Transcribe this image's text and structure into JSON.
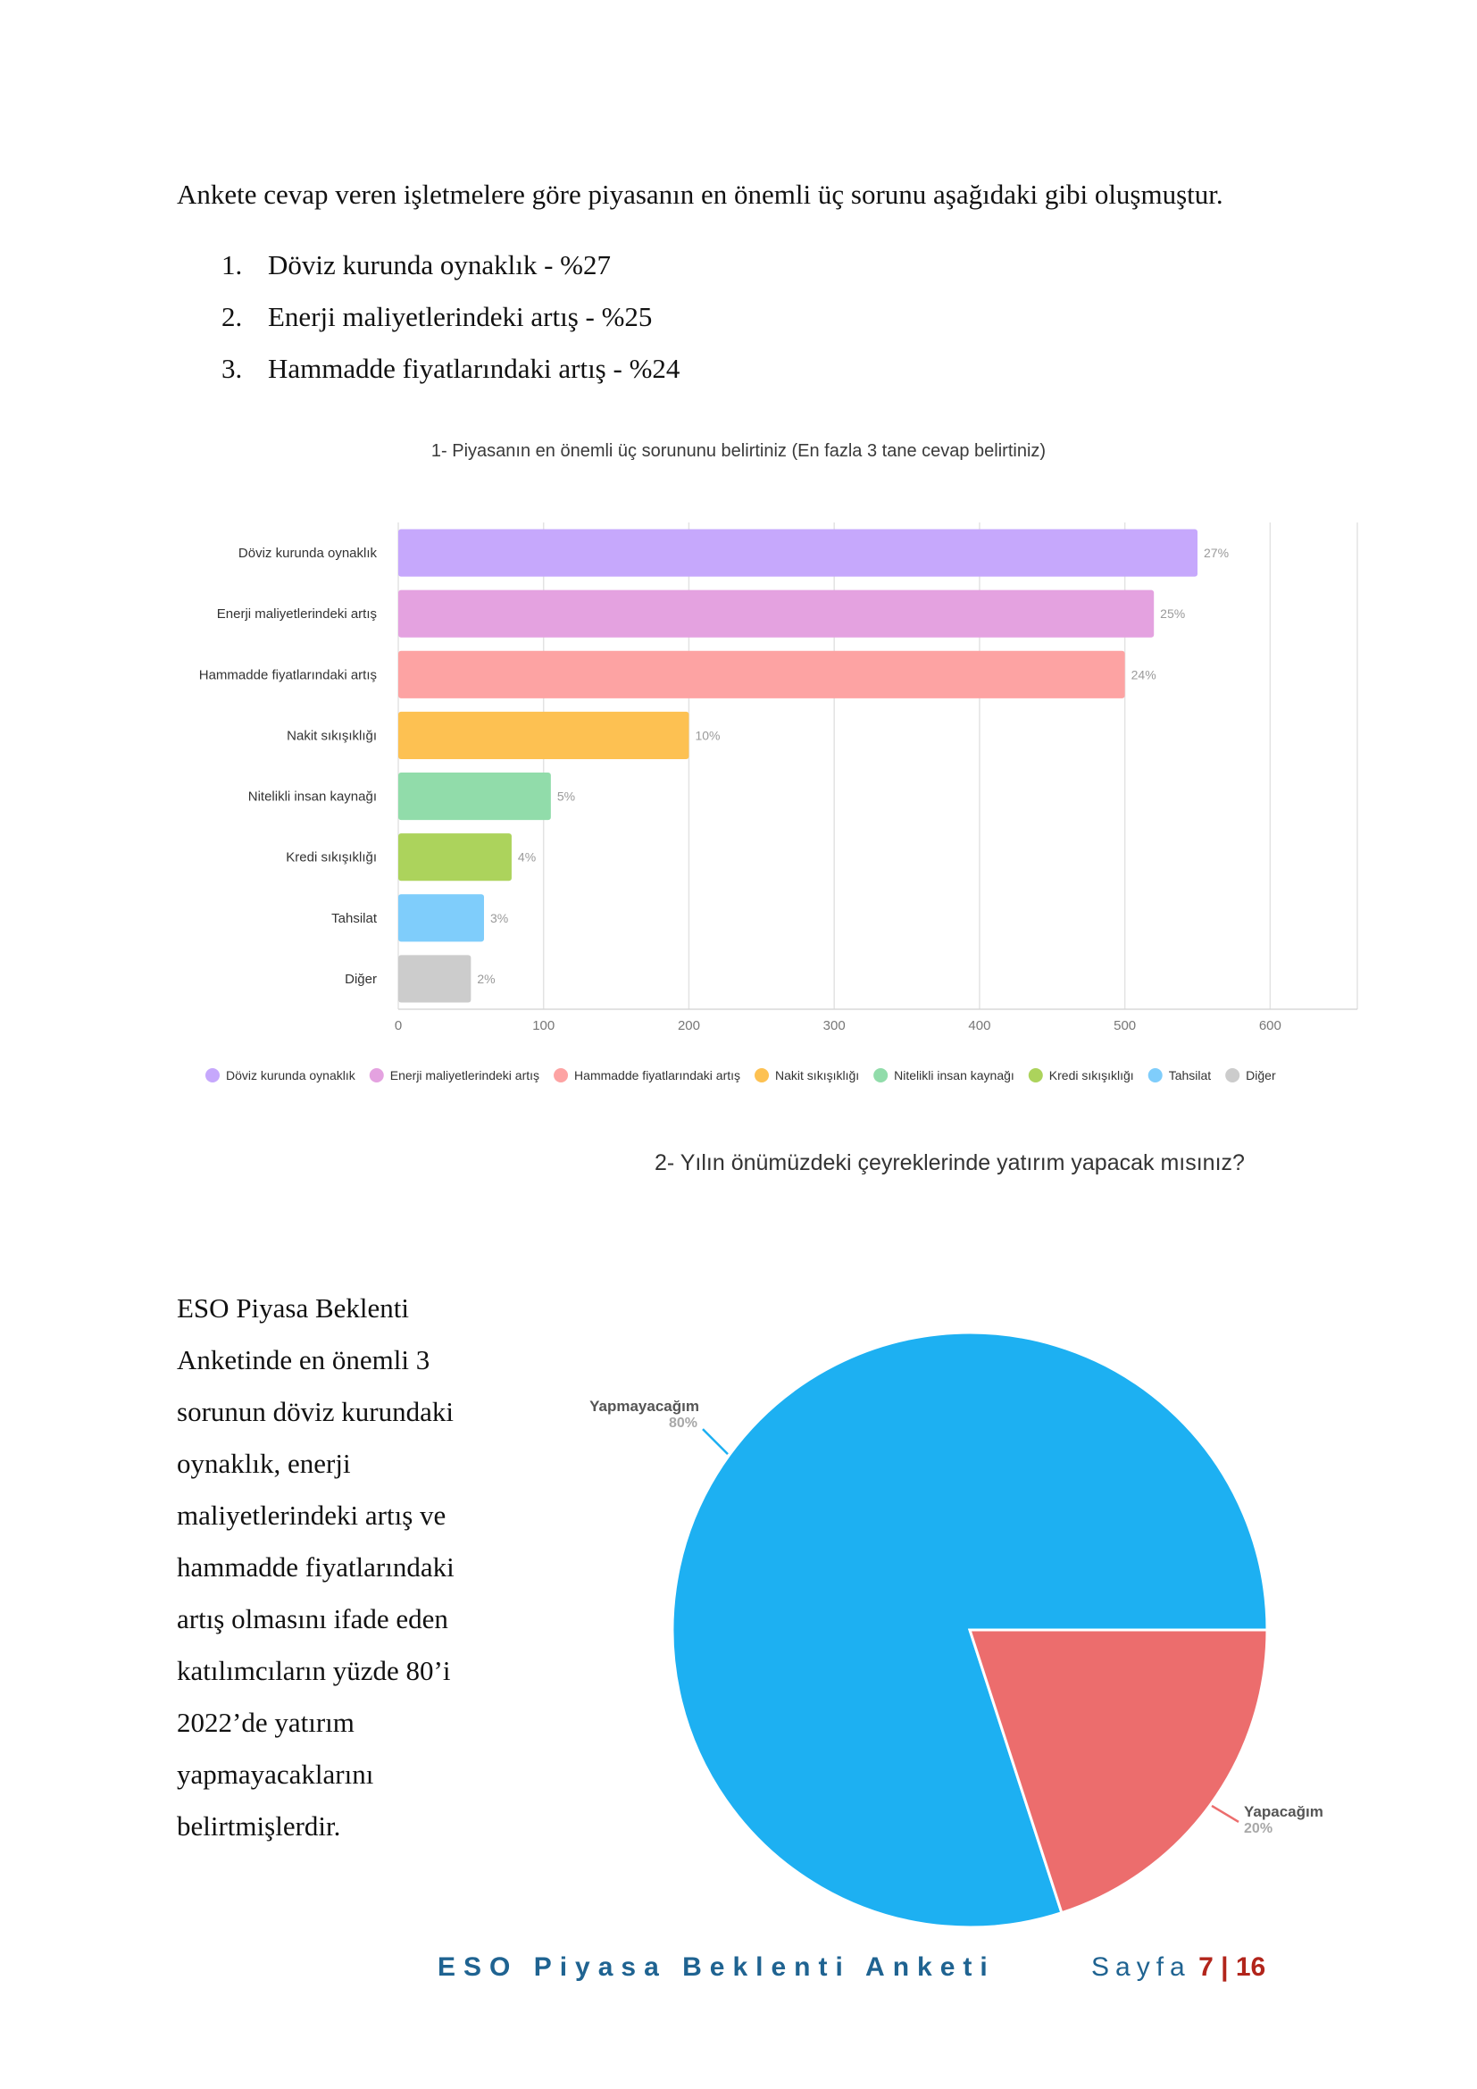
{
  "intro": "Ankete cevap veren işletmelere göre piyasanın en önemli üç sorunu aşağıdaki gibi oluşmuştur.",
  "top_issues": [
    {
      "num": "1.",
      "text": "Döviz kurunda oynaklık - %27"
    },
    {
      "num": "2.",
      "text": "Enerji maliyetlerindeki artış - %25"
    },
    {
      "num": "3.",
      "text": "Hammadde fiyatlarındaki artış - %24"
    }
  ],
  "side_text": "ESO Piyasa Beklenti Anketinde en önemli 3 sorunun döviz kurundaki oynaklık, enerji maliyetlerindeki artış ve hammadde fiyatlarındaki artış olmasını ifade eden katılımcıların yüzde 80’i 2022’de yatırım yapmayacaklarını belirtmişlerdir.",
  "footer": {
    "doc_title": "ESO Piyasa Beklenti Anketi",
    "page_label": "Sayfa",
    "page": "7",
    "separator": "|",
    "total": "16"
  },
  "chart_data": [
    {
      "type": "bar",
      "orientation": "horizontal",
      "title": "1- Piyasanın en önemli üç sorununu belirtiniz (En fazla 3 tane cevap belirtiniz)",
      "categories": [
        "Döviz kurunda oynaklık",
        "Enerji maliyetlerindeki artış",
        "Hammadde fiyatlarındaki artış",
        "Nakit sıkışıklığı",
        "Nitelikli insan kaynağı",
        "Kredi sıkışıklığı",
        "Tahsilat",
        "Diğer"
      ],
      "values": [
        550,
        520,
        500,
        200,
        105,
        78,
        59,
        50
      ],
      "value_labels": [
        "27%",
        "25%",
        "24%",
        "10%",
        "5%",
        "4%",
        "3%",
        "2%"
      ],
      "colors": [
        "#c6a8fc",
        "#e4a2e0",
        "#fda3a3",
        "#fdc152",
        "#91dcaa",
        "#acd35c",
        "#7fcdfb",
        "#cccccc"
      ],
      "xlim": [
        0,
        660
      ],
      "xticks": [
        0,
        100,
        200,
        300,
        400,
        500,
        600
      ],
      "grid": true,
      "legend": "bottom"
    },
    {
      "type": "pie",
      "title": "2- Yılın önümüzdeki çeyreklerinde yatırım yapacak mısınız?",
      "slices": [
        {
          "label": "Yapmayacağım",
          "value": 80,
          "percent_label": "80%",
          "color": "#1db0f2"
        },
        {
          "label": "Yapacağım",
          "value": 20,
          "percent_label": "20%",
          "color": "#ec6d6d"
        }
      ],
      "legend": "none"
    }
  ]
}
